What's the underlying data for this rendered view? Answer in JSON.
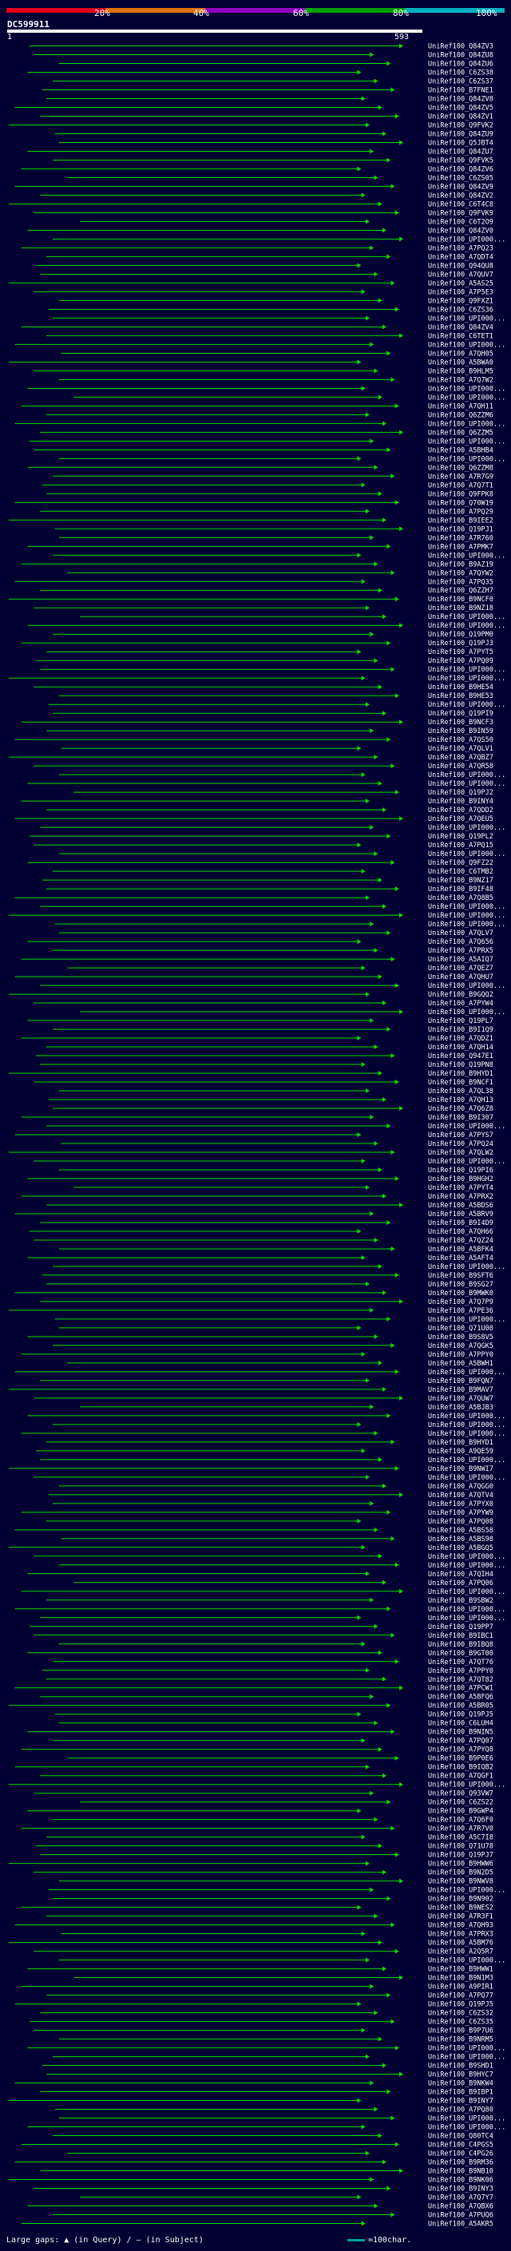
{
  "header": {
    "percent_labels": [
      "20%",
      "40%",
      "60%",
      "80%",
      "100%"
    ],
    "scale_colors": [
      "#e0001a",
      "#e07000",
      "#9000c0",
      "#00a000",
      "#00b0c0"
    ],
    "query_name": "DC599911",
    "query_start": "1",
    "query_end": "593"
  },
  "footer": {
    "large_gaps_text": "Large gaps: ▲ (in Query) / — (in Subject)",
    "scale_text": "=100char."
  },
  "chart_data": {
    "type": "alignment",
    "query_length": 593,
    "hit_line_color": "#00e000",
    "hit_labels": [
      "UniRef100_Q84ZV3",
      "UniRef100_Q84ZU8",
      "UniRef100_Q84ZU6",
      "UniRef100_C6ZS38",
      "UniRef100_C6ZS37",
      "UniRef100_B7FNE1",
      "UniRef100_Q84ZV8",
      "UniRef100_Q84ZV5",
      "UniRef100_Q84ZV1",
      "UniRef100_Q9FVK2",
      "UniRef100_Q84ZU9",
      "UniRef100_Q5JBT4",
      "UniRef100_Q84ZU7",
      "UniRef100_Q9FVK5",
      "UniRef100_Q84ZV6",
      "UniRef100_C6ZS05",
      "UniRef100_Q84ZV9",
      "UniRef100_Q84ZV2",
      "UniRef100_C6T4C8",
      "UniRef100_Q9FVK9",
      "UniRef100_C6T2O9",
      "UniRef100_Q84ZV0",
      "UniRef100_UPI000...",
      "UniRef100_A7PQ23",
      "UniRef100_A7QDT4",
      "UniRef100_Q94QU8",
      "UniRef100_A7QUV7",
      "UniRef100_A5AS25",
      "UniRef100_A7P5E3",
      "UniRef100_Q9FXZ1",
      "UniRef100_C6ZS36",
      "UniRef100_UPI000...",
      "UniRef100_Q84ZV4",
      "UniRef100_C6TET1",
      "UniRef100_UPI000...",
      "UniRef100_A7QH05",
      "UniRef100_A5BWA0",
      "UniRef100_B9HLM5",
      "UniRef100_A7Q7W2",
      "UniRef100_UPI000...",
      "UniRef100_UPI000...",
      "UniRef100_A7QH11",
      "UniRef100_Q6ZZM6",
      "UniRef100_UPI000...",
      "UniRef100_Q6ZZM5",
      "UniRef100_UPI000...",
      "UniRef100_A5BHB4",
      "UniRef100_UPI000...",
      "UniRef100_Q6ZZM8",
      "UniRef100_A7R7G9",
      "UniRef100_A7Q7T1",
      "UniRef100_Q9FPK8",
      "UniRef100_Q70W19",
      "UniRef100_A7PQ29",
      "UniRef100_B9IEE2",
      "UniRef100_Q19PJ1",
      "UniRef100_A7R760",
      "UniRef100_A7PMK7",
      "UniRef100_UPI000...",
      "UniRef100_B9AZ19",
      "UniRef100_A7QYW2",
      "UniRef100_A7PQ35",
      "UniRef100_Q6ZZH7",
      "UniRef100_B9NCF0",
      "UniRef100_B9NZ18",
      "UniRef100_UPI000...",
      "UniRef100_UPI000...",
      "UniRef100_Q19PM0",
      "UniRef100_Q19PJ3",
      "UniRef100_A7PYT5",
      "UniRef100_A7PQ09",
      "UniRef100_UPI000...",
      "UniRef100_UPI000...",
      "UniRef100_B9HE54",
      "UniRef100_B9HE53",
      "UniRef100_UPI000...",
      "UniRef100_Q19PI9",
      "UniRef100_B9NCF3",
      "UniRef100_B9IN59",
      "UniRef100_A7QS50",
      "UniRef100_A7QLV1",
      "UniRef100_A7QBZ7",
      "UniRef100_A7QR58",
      "UniRef100_UPI000...",
      "UniRef100_UPI000...",
      "UniRef100_Q19PJ2",
      "UniRef100_B9INY4",
      "UniRef100_A7QDD2",
      "UniRef100_A7QEU5",
      "UniRef100_UPI000...",
      "UniRef100_Q19PL2",
      "UniRef100_A7PQ15",
      "UniRef100_UPI000...",
      "UniRef100_Q9FZ22",
      "UniRef100_C6TMB2",
      "UniRef100_B9NZ17",
      "UniRef100_B9IF48",
      "UniRef100_A7Q8B5",
      "UniRef100_UPI000...",
      "UniRef100_UPI000...",
      "UniRef100_UPI000...",
      "UniRef100_A7QLV7",
      "UniRef100_A7Q656",
      "UniRef100_A7PRX5",
      "UniRef100_A5AIQ7",
      "UniRef100_A7QEZ7",
      "UniRef100_A7QHU7",
      "UniRef100_UPI000...",
      "UniRef100_B9GQQ2",
      "UniRef100_A7PYW4",
      "UniRef100_UPI000...",
      "UniRef100_Q19PL7",
      "UniRef100_B9I1Q9",
      "UniRef100_A7QDZ1",
      "UniRef100_A7QH14",
      "UniRef100_Q947E1",
      "UniRef100_Q19PN8",
      "UniRef100_B9HYD1",
      "UniRef100_B9NCF1",
      "UniRef100_A7QL38",
      "UniRef100_A7QH13",
      "UniRef100_A7Q6Z8",
      "UniRef100_B9I307",
      "UniRef100_UPI000...",
      "UniRef100_A7PYS7",
      "UniRef100_A7PQ24",
      "UniRef100_A7QLW2",
      "UniRef100_UPI000...",
      "UniRef100_Q19PI6",
      "UniRef100_B9HGH2",
      "UniRef100_A7PYT4",
      "UniRef100_A7PRX2",
      "UniRef100_A5BDS6",
      "UniRef100_A5BRV9",
      "UniRef100_B9I4D9",
      "UniRef100_A7QH66",
      "UniRef100_A7QZ24",
      "UniRef100_A5BFK4",
      "UniRef100_A5AFT4",
      "UniRef100_UPI000...",
      "UniRef100_B9SFT6",
      "UniRef100_B9SG27",
      "UniRef100_B9MWK0",
      "UniRef100_A7Q7P9",
      "UniRef100_A7PE36",
      "UniRef100_UPI000...",
      "UniRef100_Q71U00",
      "UniRef100_B9S8V5",
      "UniRef100_A7QGK5",
      "UniRef100_A7PPY0",
      "UniRef100_A5BWH1",
      "UniRef100_UPI000...",
      "UniRef100_B9FQN7",
      "UniRef100_B9MAV7",
      "UniRef100_A7QUW7",
      "UniRef100_A5BJB3",
      "UniRef100_UPI000...",
      "UniRef100_UPI000...",
      "UniRef100_UPI000...",
      "UniRef100_B9HYD1",
      "UniRef100_A9QE59",
      "UniRef100_UPI000...",
      "UniRef100_B9NWI7",
      "UniRef100_UPI000...",
      "UniRef100_A7QGG0",
      "UniRef100_A7QTV4",
      "UniRef100_A7PYX0",
      "UniRef100_A7PYW9",
      "UniRef100_A7PQ08",
      "UniRef100_A5BS58",
      "UniRef100_A5BS98",
      "UniRef100_A5BGQ5",
      "UniRef100_UPI000...",
      "UniRef100_UPI000...",
      "UniRef100_A7QIH4",
      "UniRef100_A7PQ06",
      "UniRef100_UPI000...",
      "UniRef100_B9SBW2",
      "UniRef100_UPI000...",
      "UniRef100_UPI000...",
      "UniRef100_Q19PP7",
      "UniRef100_B9IBC1",
      "UniRef100_B9IBQ8",
      "UniRef100_B9GT00",
      "UniRef100_A7QT76",
      "UniRef100_A7PPY0",
      "UniRef100_A7QT82",
      "UniRef100_A7PCW1",
      "UniRef100_A5BFQ6",
      "UniRef100_A5BR05",
      "UniRef100_Q19PJ5",
      "UniRef100_C6LUH4",
      "UniRef100_B9NIN5",
      "UniRef100_A7PQ07",
      "UniRef100_A7PYQ8",
      "UniRef100_B9P0E6",
      "UniRef100_B9IQB2",
      "UniRef100_A7QGF1",
      "UniRef100_UPI000...",
      "UniRef100_Q93VW7",
      "UniRef100_C6ZS22",
      "UniRef100_B9GWP4",
      "UniRef100_A7Q6F0",
      "UniRef100_A7R7V0",
      "UniRef100_A5C7I8",
      "UniRef100_Q71U78",
      "UniRef100_Q19PJ7",
      "UniRef100_B9HWW6",
      "UniRef100_B9N2D5",
      "UniRef100_B9NWV8",
      "UniRef100_UPI000...",
      "UniRef100_B9N902",
      "UniRef100_B9NES2",
      "UniRef100_A7R3F1",
      "UniRef100_A7QH93",
      "UniRef100_A7PRX3",
      "UniRef100_A5BM76",
      "UniRef100_A2Q5R7",
      "UniRef100_UPI000...",
      "UniRef100_B9HWW1",
      "UniRef100_B9N1M3",
      "UniRef100_A9PIR1",
      "UniRef100_A7PQ77",
      "UniRef100_Q19PJ5",
      "UniRef100_C6ZS32",
      "UniRef100_C6ZS35",
      "UniRef100_B9P7U6",
      "UniRef100_B9NRM5",
      "UniRef100_UPI000...",
      "UniRef100_UPI000...",
      "UniRef100_B9SHD1",
      "UniRef100_B9HYC7",
      "UniRef100_B9NKW4",
      "UniRef100_B9IBP1",
      "UniRef100_B9INY7",
      "UniRef100_A7PQ80",
      "UniRef100_UPI000...",
      "UniRef100_UPI000...",
      "UniRef100_Q80TC4",
      "UniRef100_C4PGS5",
      "UniRef100_C4PG26",
      "UniRef100_B9RM36",
      "UniRef100_B9NB10",
      "UniRef100_B9NK06",
      "UniRef100_B9INY3",
      "UniRef100_A7Q7Y7",
      "UniRef100_A7QBX6",
      "UniRef100_A7PUQ6",
      "UniRef100_A5AKR5"
    ]
  }
}
